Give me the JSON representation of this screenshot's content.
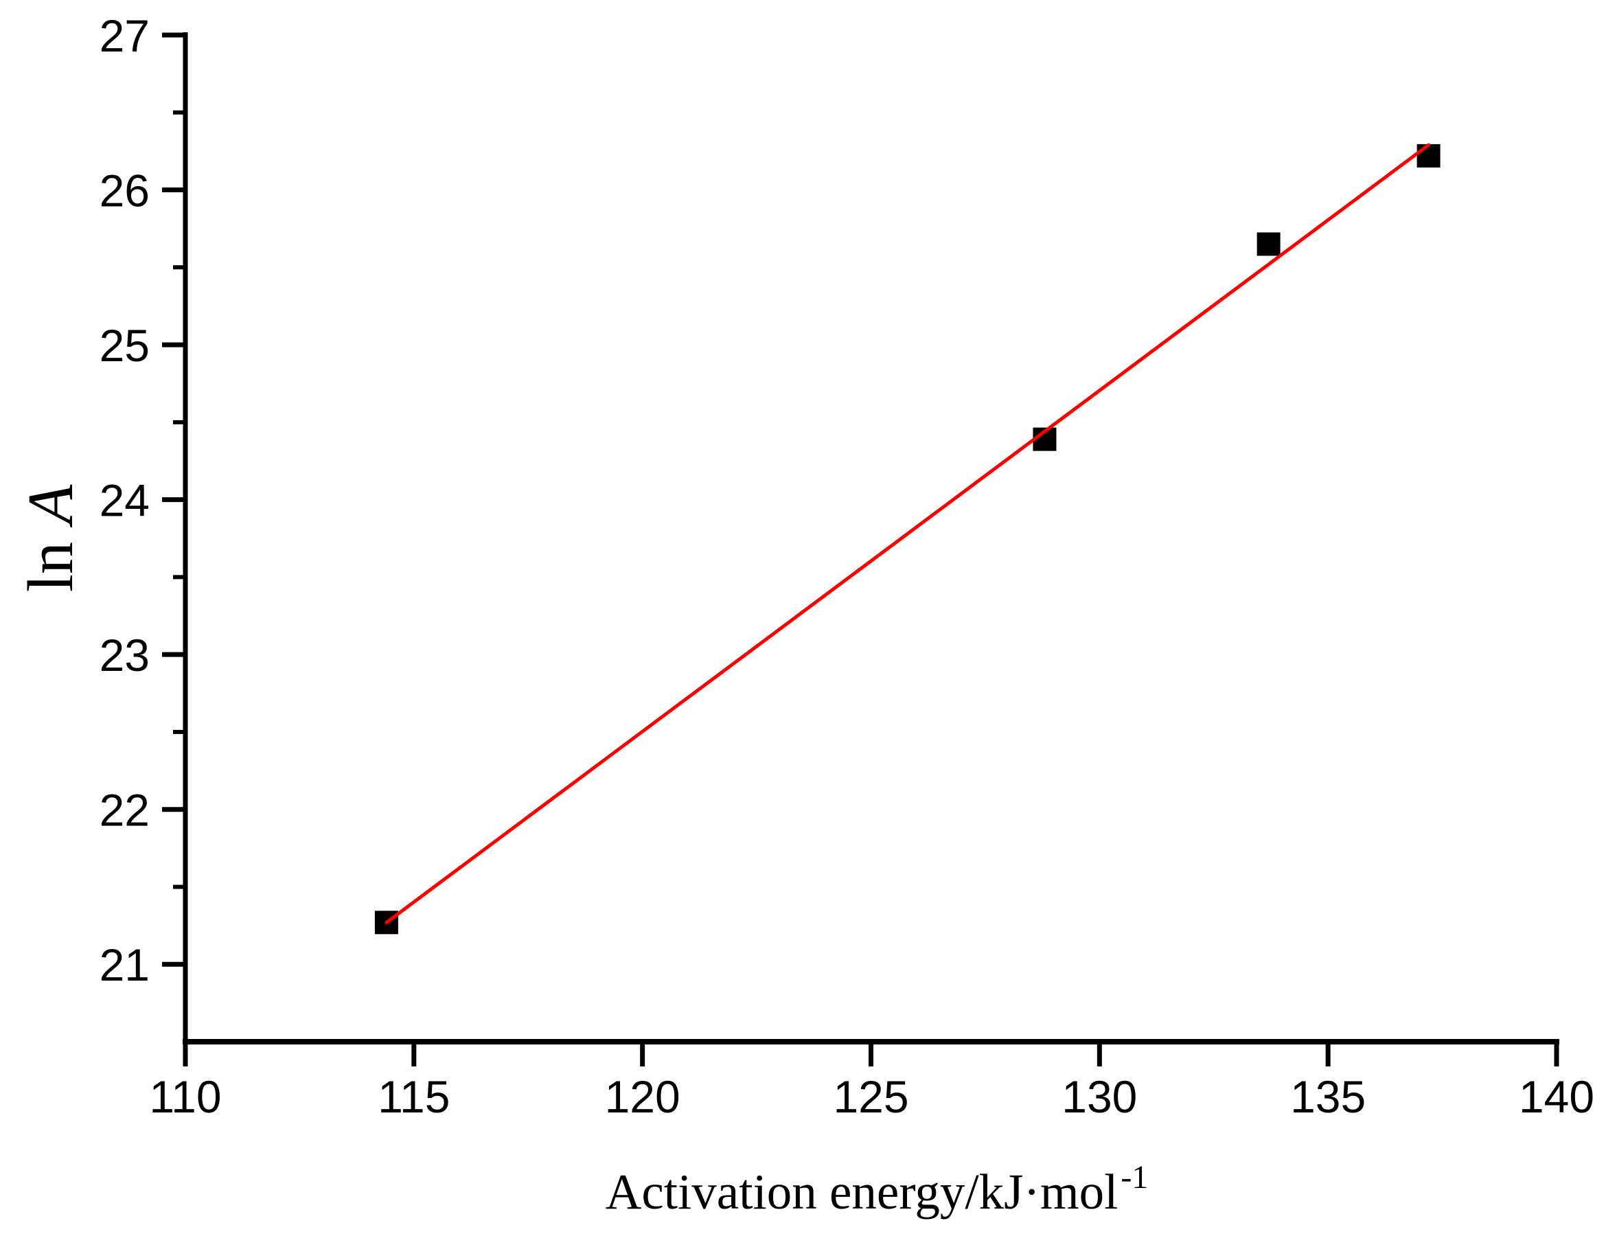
{
  "figure": {
    "background_color": "#ffffff"
  },
  "chart_data": {
    "type": "scatter",
    "title": "",
    "xlabel": "Activation energy/kJ·mol⁻¹",
    "xlabel_main": "Activation energy/kJ·mol",
    "xlabel_superscript": "-1",
    "ylabel": "ln A",
    "ylabel_word": "ln",
    "ylabel_symbol": "A",
    "xlim": [
      110,
      140
    ],
    "ylim": [
      20.5,
      27
    ],
    "x_major_ticks": [
      110,
      115,
      120,
      125,
      130,
      135,
      140
    ],
    "y_major_ticks": [
      21,
      22,
      23,
      24,
      25,
      26,
      27
    ],
    "y_minor_ticks": [
      21.5,
      22.5,
      23.5,
      24.5,
      25.5,
      26.5
    ],
    "grid": false,
    "legend_visible": false,
    "colors": {
      "marker": "#000000",
      "fit_line": "#ff0000",
      "axis": "#000000"
    },
    "series": [
      {
        "name": "scatter-points",
        "type": "scatter",
        "marker": "square",
        "color": "#000000",
        "points": [
          {
            "x": 114.4,
            "y": 21.27
          },
          {
            "x": 128.8,
            "y": 24.39
          },
          {
            "x": 133.7,
            "y": 25.65
          },
          {
            "x": 137.2,
            "y": 26.22
          }
        ]
      },
      {
        "name": "linear-fit-line",
        "type": "line",
        "color": "#ff0000",
        "points": [
          {
            "x": 114.4,
            "y": 21.27
          },
          {
            "x": 137.2,
            "y": 26.29
          }
        ]
      }
    ]
  }
}
